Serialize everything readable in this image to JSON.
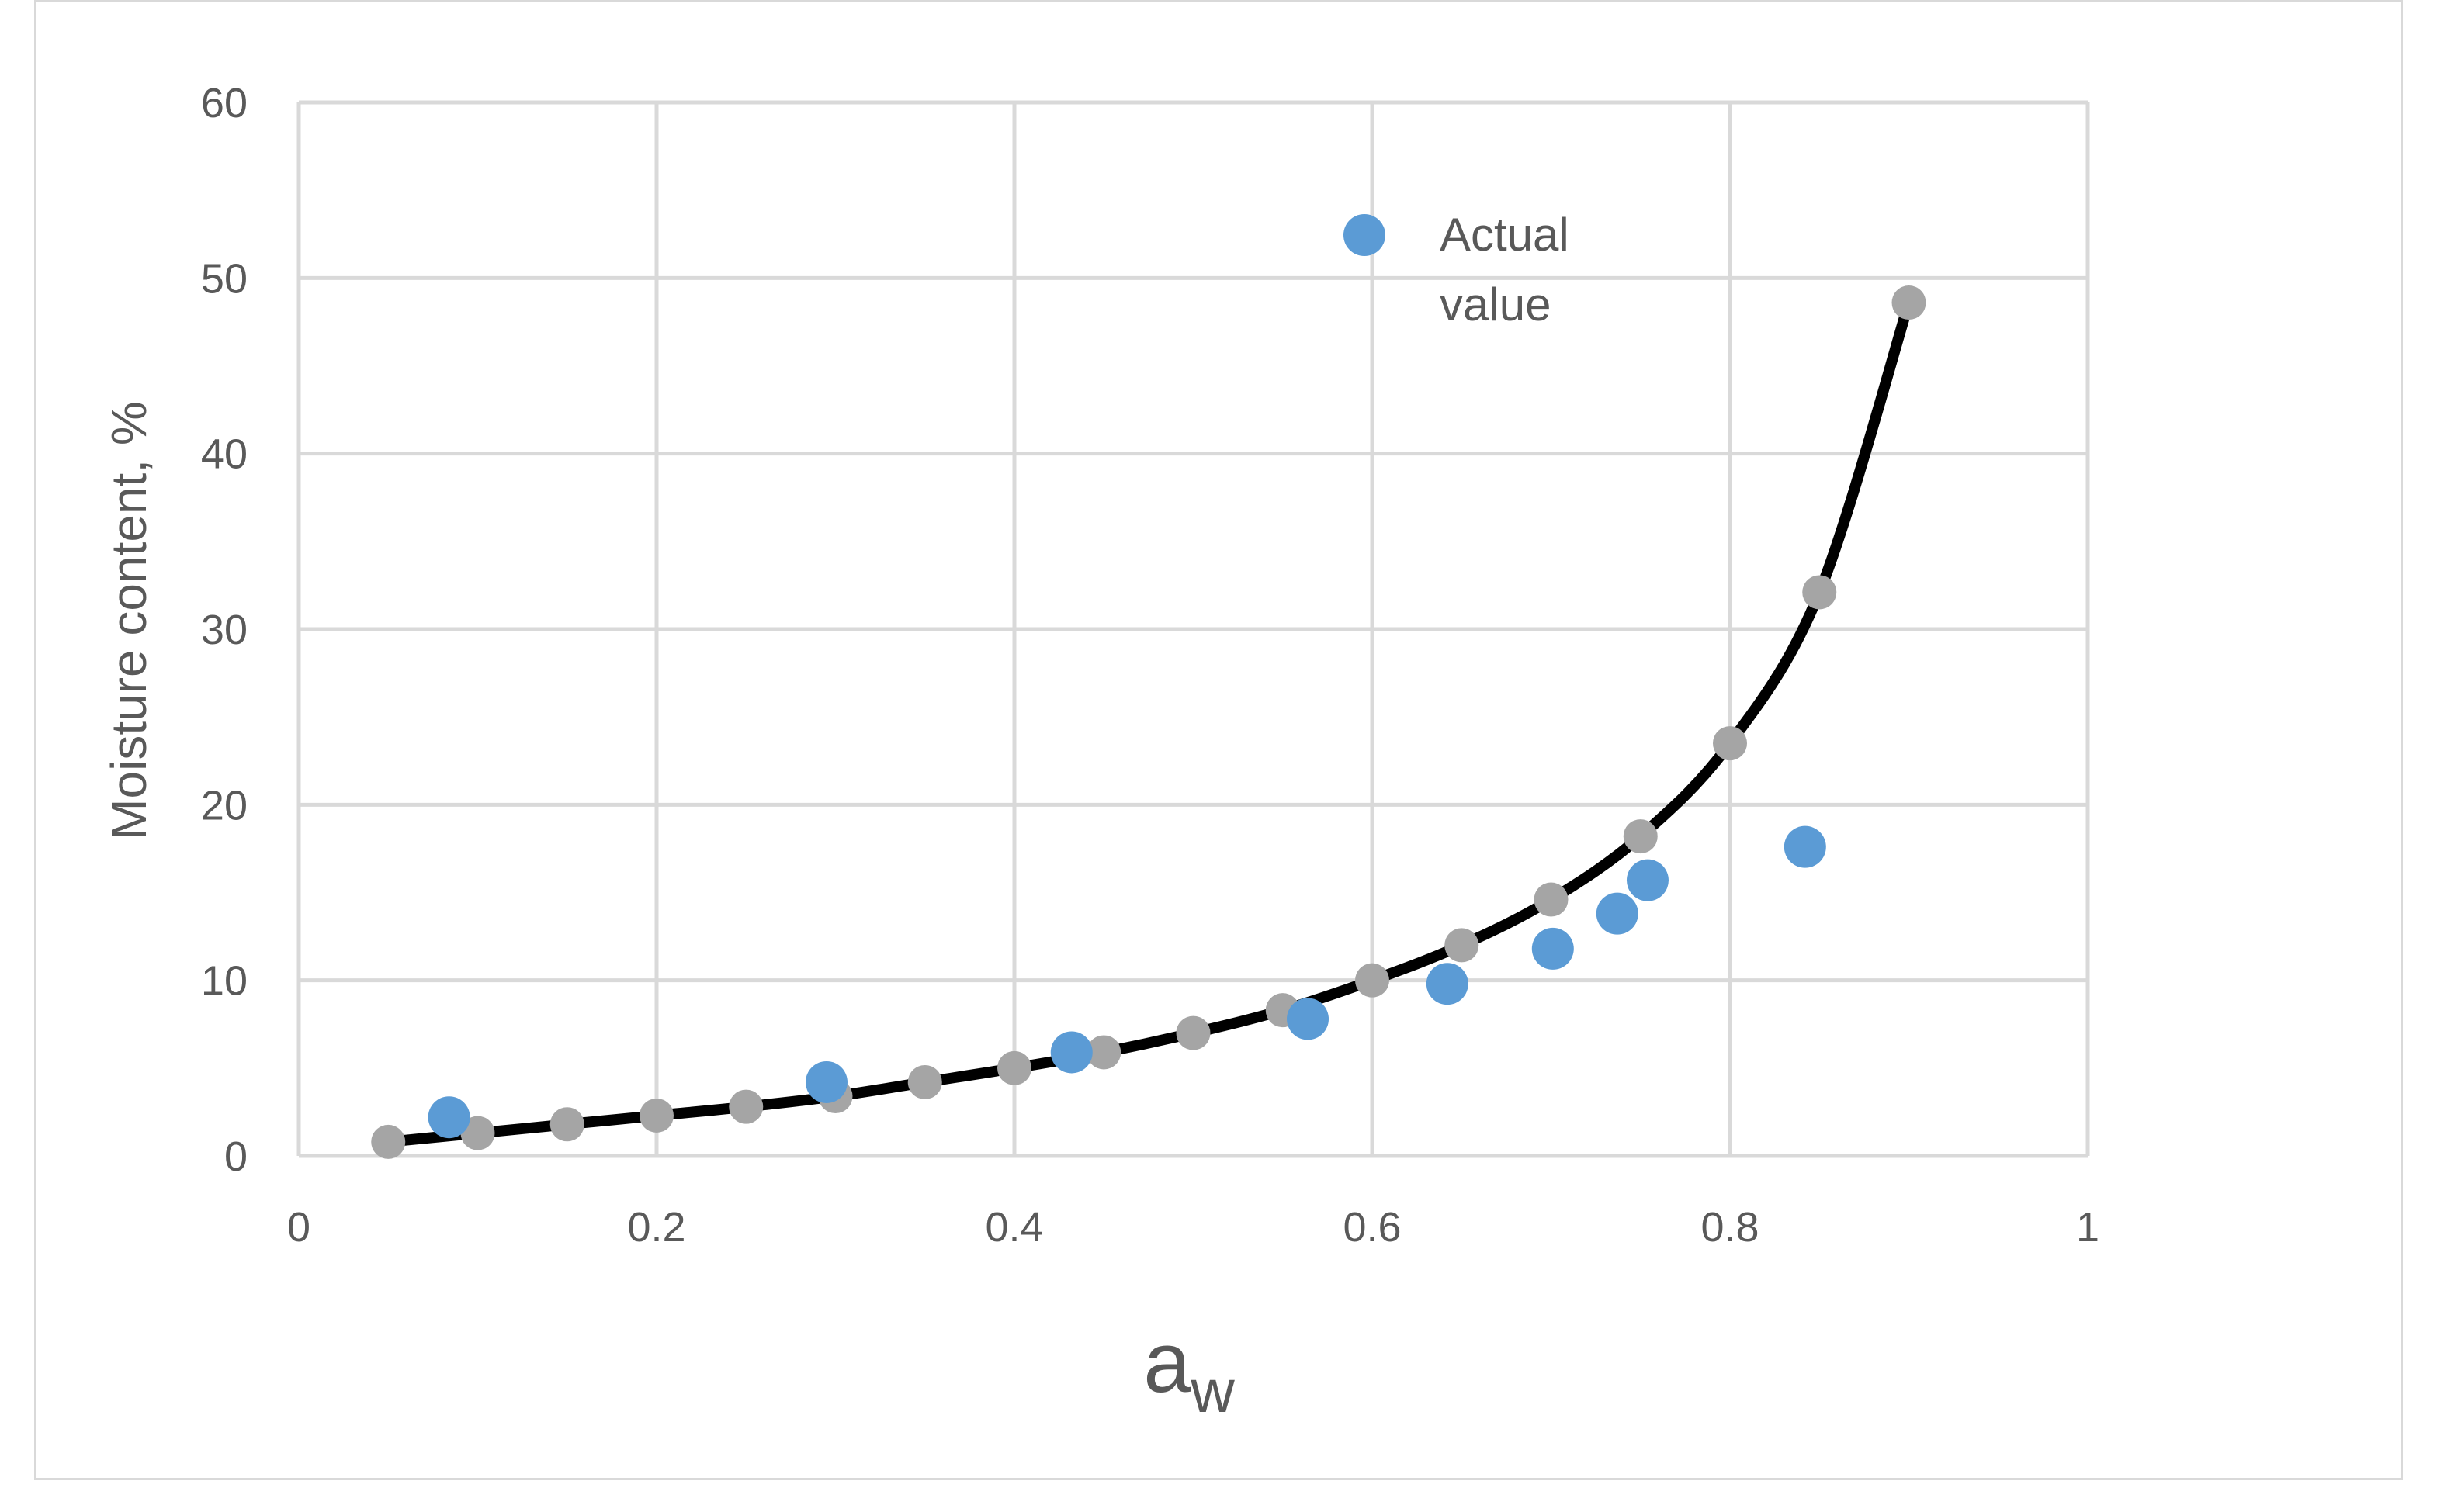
{
  "chart_data": {
    "type": "scatter",
    "xlabel": {
      "main": "a",
      "sub": "w"
    },
    "ylabel": "Moisture content, %",
    "xlim": [
      0,
      1
    ],
    "ylim": [
      0,
      60
    ],
    "x_ticks": [
      0,
      0.2,
      0.4,
      0.6,
      0.8,
      1
    ],
    "x_tick_labels": [
      "0",
      "0.2",
      "0.4",
      "0.6",
      "0.8",
      "1"
    ],
    "y_ticks": [
      0,
      10,
      20,
      30,
      40,
      50,
      60
    ],
    "y_tick_labels": [
      "0",
      "10",
      "20",
      "30",
      "40",
      "50",
      "60"
    ],
    "grid": true,
    "legend_position": "top-right",
    "series": [
      {
        "name": "",
        "style": "line-with-markers",
        "line_color": "#000000",
        "marker_color": "#a5a5a5",
        "points": [
          [
            0.05,
            0.8
          ],
          [
            0.1,
            1.3
          ],
          [
            0.15,
            1.8
          ],
          [
            0.2,
            2.3
          ],
          [
            0.25,
            2.8
          ],
          [
            0.3,
            3.4
          ],
          [
            0.35,
            4.2
          ],
          [
            0.4,
            5.0
          ],
          [
            0.45,
            5.9
          ],
          [
            0.5,
            7.0
          ],
          [
            0.55,
            8.3
          ],
          [
            0.6,
            10.0
          ],
          [
            0.65,
            12.0
          ],
          [
            0.7,
            14.6
          ],
          [
            0.75,
            18.2
          ],
          [
            0.8,
            23.5
          ],
          [
            0.85,
            32.1
          ],
          [
            0.9,
            48.6
          ]
        ]
      },
      {
        "name": "Actual value",
        "style": "markers",
        "marker_color": "#5b9bd5",
        "points": [
          [
            0.084,
            2.2
          ],
          [
            0.295,
            4.2
          ],
          [
            0.432,
            5.9
          ],
          [
            0.564,
            7.8
          ],
          [
            0.642,
            9.8
          ],
          [
            0.701,
            11.8
          ],
          [
            0.737,
            13.8
          ],
          [
            0.754,
            15.7
          ],
          [
            0.842,
            17.6
          ]
        ]
      }
    ]
  }
}
